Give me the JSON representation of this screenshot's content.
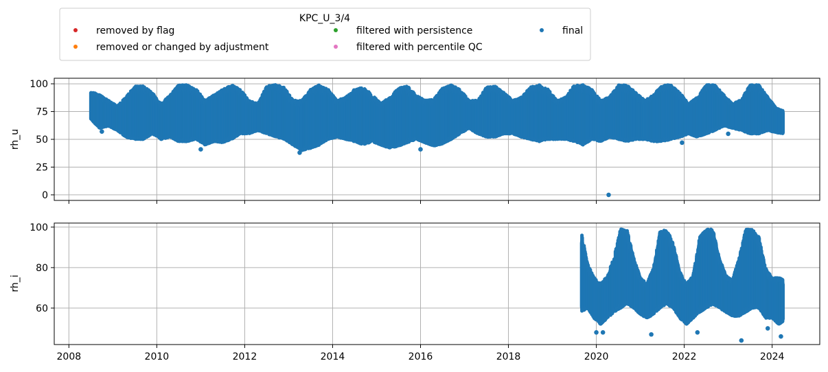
{
  "chart_data": {
    "type": "scatter",
    "legend": {
      "title": "KPC_U_3/4",
      "placement": "top-left",
      "entries": [
        {
          "label": "removed by flag",
          "color": "#d62728"
        },
        {
          "label": "removed or changed by adjustment",
          "color": "#ff7f0e"
        },
        {
          "label": "filtered with persistence",
          "color": "#2ca02c"
        },
        {
          "label": "filtered with percentile QC",
          "color": "#e377c2"
        },
        {
          "label": "final",
          "color": "#1f77b4"
        }
      ]
    },
    "x_axis": {
      "range": [
        "2007-09-01",
        "2025-02-01"
      ],
      "ticks": [
        "2008",
        "2010",
        "2012",
        "2014",
        "2016",
        "2018",
        "2020",
        "2022",
        "2024"
      ],
      "grid": true
    },
    "panels": [
      {
        "ylabel": "rh_u",
        "ylim": [
          -5,
          105
        ],
        "yticks": [
          0,
          25,
          50,
          75,
          100
        ],
        "grid": true,
        "series": [
          {
            "name": "final",
            "color": "#1f77b4",
            "start": "2008-07",
            "end": "2024-04",
            "bands": [
              [
                2008.5,
                68,
                93
              ],
              [
                2008.7,
                60,
                90
              ],
              [
                2008.9,
                62,
                85
              ],
              [
                2009.1,
                58,
                80
              ],
              [
                2009.3,
                52,
                88
              ],
              [
                2009.5,
                50,
                98
              ],
              [
                2009.7,
                50,
                98
              ],
              [
                2009.9,
                55,
                92
              ],
              [
                2010.1,
                50,
                82
              ],
              [
                2010.3,
                52,
                90
              ],
              [
                2010.5,
                48,
                99
              ],
              [
                2010.7,
                48,
                99
              ],
              [
                2010.9,
                50,
                95
              ],
              [
                2011.1,
                45,
                85
              ],
              [
                2011.3,
                48,
                90
              ],
              [
                2011.5,
                47,
                95
              ],
              [
                2011.7,
                50,
                99
              ],
              [
                2011.9,
                55,
                95
              ],
              [
                2012.1,
                55,
                85
              ],
              [
                2012.3,
                58,
                82
              ],
              [
                2012.5,
                55,
                98
              ],
              [
                2012.7,
                52,
                100
              ],
              [
                2012.9,
                50,
                97
              ],
              [
                2013.1,
                45,
                85
              ],
              [
                2013.3,
                40,
                85
              ],
              [
                2013.5,
                42,
                95
              ],
              [
                2013.7,
                45,
                99
              ],
              [
                2013.9,
                50,
                95
              ],
              [
                2014.1,
                52,
                85
              ],
              [
                2014.3,
                50,
                88
              ],
              [
                2014.5,
                48,
                95
              ],
              [
                2014.7,
                45,
                97
              ],
              [
                2014.9,
                48,
                90
              ],
              [
                2015.1,
                45,
                82
              ],
              [
                2015.3,
                42,
                88
              ],
              [
                2015.5,
                44,
                96
              ],
              [
                2015.7,
                47,
                98
              ],
              [
                2015.9,
                50,
                90
              ],
              [
                2016.1,
                47,
                85
              ],
              [
                2016.3,
                44,
                86
              ],
              [
                2016.5,
                46,
                96
              ],
              [
                2016.7,
                50,
                99
              ],
              [
                2016.9,
                55,
                95
              ],
              [
                2017.1,
                60,
                85
              ],
              [
                2017.3,
                55,
                85
              ],
              [
                2017.5,
                52,
                97
              ],
              [
                2017.7,
                52,
                98
              ],
              [
                2017.9,
                55,
                92
              ],
              [
                2018.1,
                55,
                85
              ],
              [
                2018.3,
                52,
                88
              ],
              [
                2018.5,
                50,
                97
              ],
              [
                2018.7,
                48,
                99
              ],
              [
                2018.9,
                50,
                95
              ],
              [
                2019.1,
                50,
                85
              ],
              [
                2019.3,
                50,
                88
              ],
              [
                2019.5,
                48,
                99
              ],
              [
                2019.7,
                45,
                99
              ],
              [
                2019.9,
                50,
                95
              ],
              [
                2020.1,
                48,
                85
              ],
              [
                2020.3,
                52,
                88
              ],
              [
                2020.5,
                50,
                99
              ],
              [
                2020.7,
                48,
                99
              ],
              [
                2020.9,
                50,
                92
              ],
              [
                2021.1,
                50,
                85
              ],
              [
                2021.3,
                48,
                90
              ],
              [
                2021.5,
                48,
                99
              ],
              [
                2021.7,
                50,
                99
              ],
              [
                2021.9,
                52,
                92
              ],
              [
                2022.1,
                55,
                82
              ],
              [
                2022.3,
                52,
                88
              ],
              [
                2022.5,
                55,
                99
              ],
              [
                2022.7,
                58,
                99
              ],
              [
                2022.9,
                62,
                90
              ],
              [
                2023.1,
                60,
                82
              ],
              [
                2023.3,
                58,
                86
              ],
              [
                2023.5,
                55,
                99
              ],
              [
                2023.7,
                55,
                99
              ],
              [
                2023.9,
                58,
                88
              ],
              [
                2024.1,
                56,
                78
              ],
              [
                2024.3,
                55,
                75
              ]
            ],
            "outliers": [
              [
                2008.75,
                57
              ],
              [
                2011.0,
                41
              ],
              [
                2013.25,
                38
              ],
              [
                2016.0,
                41
              ],
              [
                2020.28,
                0
              ],
              [
                2021.95,
                47
              ],
              [
                2023.0,
                55
              ]
            ]
          }
        ]
      },
      {
        "ylabel": "rh_i",
        "ylim": [
          42,
          102
        ],
        "yticks": [
          60,
          80,
          100
        ],
        "grid": true,
        "series": [
          {
            "name": "final",
            "color": "#1f77b4",
            "start": "2019-09",
            "end": "2024-04",
            "bands": [
              [
                2019.65,
                58,
                99
              ],
              [
                2019.8,
                60,
                82
              ],
              [
                2019.95,
                55,
                75
              ],
              [
                2020.1,
                52,
                72
              ],
              [
                2020.25,
                55,
                76
              ],
              [
                2020.4,
                58,
                85
              ],
              [
                2020.55,
                60,
                99
              ],
              [
                2020.7,
                62,
                99
              ],
              [
                2020.85,
                60,
                85
              ],
              [
                2021.0,
                57,
                75
              ],
              [
                2021.15,
                55,
                72
              ],
              [
                2021.3,
                57,
                80
              ],
              [
                2021.45,
                60,
                98
              ],
              [
                2021.6,
                62,
                99
              ],
              [
                2021.75,
                60,
                92
              ],
              [
                2021.9,
                55,
                78
              ],
              [
                2022.05,
                52,
                72
              ],
              [
                2022.2,
                55,
                76
              ],
              [
                2022.35,
                58,
                95
              ],
              [
                2022.5,
                60,
                99
              ],
              [
                2022.65,
                62,
                99
              ],
              [
                2022.8,
                60,
                85
              ],
              [
                2022.95,
                58,
                76
              ],
              [
                2023.1,
                56,
                74
              ],
              [
                2023.25,
                56,
                85
              ],
              [
                2023.4,
                58,
                99
              ],
              [
                2023.55,
                60,
                99
              ],
              [
                2023.7,
                60,
                95
              ],
              [
                2023.85,
                55,
                80
              ],
              [
                2024.0,
                55,
                75
              ],
              [
                2024.15,
                52,
                75
              ],
              [
                2024.3,
                54,
                74
              ]
            ],
            "outliers": [
              [
                2020.0,
                48
              ],
              [
                2020.15,
                48
              ],
              [
                2021.25,
                47
              ],
              [
                2022.3,
                48
              ],
              [
                2023.3,
                44
              ],
              [
                2024.2,
                46
              ],
              [
                2023.9,
                50
              ]
            ]
          }
        ]
      }
    ]
  }
}
